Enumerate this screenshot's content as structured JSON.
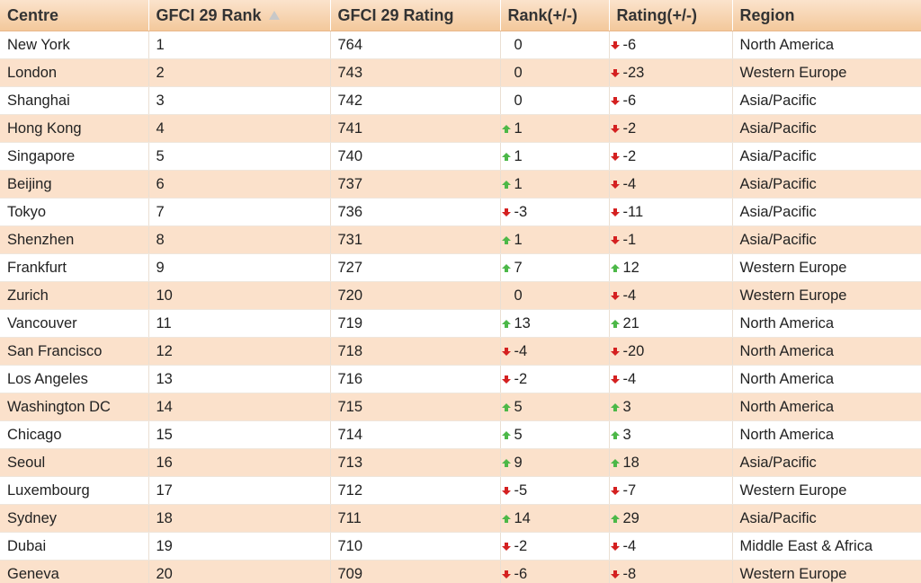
{
  "table": {
    "headers": {
      "centre": "Centre",
      "rank": "GFCI 29 Rank",
      "rating": "GFCI 29 Rating",
      "rank_change": "Rank(+/-)",
      "rating_change": "Rating(+/-)",
      "region": "Region"
    },
    "sorted_column": "rank",
    "sort_direction": "ascending",
    "colors": {
      "header_bg": "#f3c89b",
      "row_alt_bg": "#fbe1cb",
      "up_arrow": "#4cb848",
      "down_arrow": "#d42020"
    },
    "rows": [
      {
        "centre": "New York",
        "rank": "1",
        "rating": "764",
        "rank_change": "0",
        "rank_dir": "none",
        "rating_change": "-6",
        "rating_dir": "down",
        "region": "North America"
      },
      {
        "centre": "London",
        "rank": "2",
        "rating": "743",
        "rank_change": "0",
        "rank_dir": "none",
        "rating_change": "-23",
        "rating_dir": "down",
        "region": "Western Europe"
      },
      {
        "centre": "Shanghai",
        "rank": "3",
        "rating": "742",
        "rank_change": "0",
        "rank_dir": "none",
        "rating_change": "-6",
        "rating_dir": "down",
        "region": "Asia/Pacific"
      },
      {
        "centre": "Hong Kong",
        "rank": "4",
        "rating": "741",
        "rank_change": "1",
        "rank_dir": "up",
        "rating_change": "-2",
        "rating_dir": "down",
        "region": "Asia/Pacific"
      },
      {
        "centre": "Singapore",
        "rank": "5",
        "rating": "740",
        "rank_change": "1",
        "rank_dir": "up",
        "rating_change": "-2",
        "rating_dir": "down",
        "region": "Asia/Pacific"
      },
      {
        "centre": "Beijing",
        "rank": "6",
        "rating": "737",
        "rank_change": "1",
        "rank_dir": "up",
        "rating_change": "-4",
        "rating_dir": "down",
        "region": "Asia/Pacific"
      },
      {
        "centre": "Tokyo",
        "rank": "7",
        "rating": "736",
        "rank_change": "-3",
        "rank_dir": "down",
        "rating_change": "-11",
        "rating_dir": "down",
        "region": "Asia/Pacific"
      },
      {
        "centre": "Shenzhen",
        "rank": "8",
        "rating": "731",
        "rank_change": "1",
        "rank_dir": "up",
        "rating_change": "-1",
        "rating_dir": "down",
        "region": "Asia/Pacific"
      },
      {
        "centre": "Frankfurt",
        "rank": "9",
        "rating": "727",
        "rank_change": "7",
        "rank_dir": "up",
        "rating_change": "12",
        "rating_dir": "up",
        "region": "Western Europe"
      },
      {
        "centre": "Zurich",
        "rank": "10",
        "rating": "720",
        "rank_change": "0",
        "rank_dir": "none",
        "rating_change": "-4",
        "rating_dir": "down",
        "region": "Western Europe"
      },
      {
        "centre": "Vancouver",
        "rank": "11",
        "rating": "719",
        "rank_change": "13",
        "rank_dir": "up",
        "rating_change": "21",
        "rating_dir": "up",
        "region": "North America"
      },
      {
        "centre": "San Francisco",
        "rank": "12",
        "rating": "718",
        "rank_change": "-4",
        "rank_dir": "down",
        "rating_change": "-20",
        "rating_dir": "down",
        "region": "North America"
      },
      {
        "centre": "Los Angeles",
        "rank": "13",
        "rating": "716",
        "rank_change": "-2",
        "rank_dir": "down",
        "rating_change": "-4",
        "rating_dir": "down",
        "region": "North America"
      },
      {
        "centre": "Washington DC",
        "rank": "14",
        "rating": "715",
        "rank_change": "5",
        "rank_dir": "up",
        "rating_change": "3",
        "rating_dir": "up",
        "region": "North America"
      },
      {
        "centre": "Chicago",
        "rank": "15",
        "rating": "714",
        "rank_change": "5",
        "rank_dir": "up",
        "rating_change": "3",
        "rating_dir": "up",
        "region": "North America"
      },
      {
        "centre": "Seoul",
        "rank": "16",
        "rating": "713",
        "rank_change": "9",
        "rank_dir": "up",
        "rating_change": "18",
        "rating_dir": "up",
        "region": "Asia/Pacific"
      },
      {
        "centre": "Luxembourg",
        "rank": "17",
        "rating": "712",
        "rank_change": "-5",
        "rank_dir": "down",
        "rating_change": "-7",
        "rating_dir": "down",
        "region": "Western Europe"
      },
      {
        "centre": "Sydney",
        "rank": "18",
        "rating": "711",
        "rank_change": "14",
        "rank_dir": "up",
        "rating_change": "29",
        "rating_dir": "up",
        "region": "Asia/Pacific"
      },
      {
        "centre": "Dubai",
        "rank": "19",
        "rating": "710",
        "rank_change": "-2",
        "rank_dir": "down",
        "rating_change": "-4",
        "rating_dir": "down",
        "region": "Middle East & Africa"
      },
      {
        "centre": "Geneva",
        "rank": "20",
        "rating": "709",
        "rank_change": "-6",
        "rank_dir": "down",
        "rating_change": "-8",
        "rating_dir": "down",
        "region": "Western Europe"
      }
    ]
  }
}
